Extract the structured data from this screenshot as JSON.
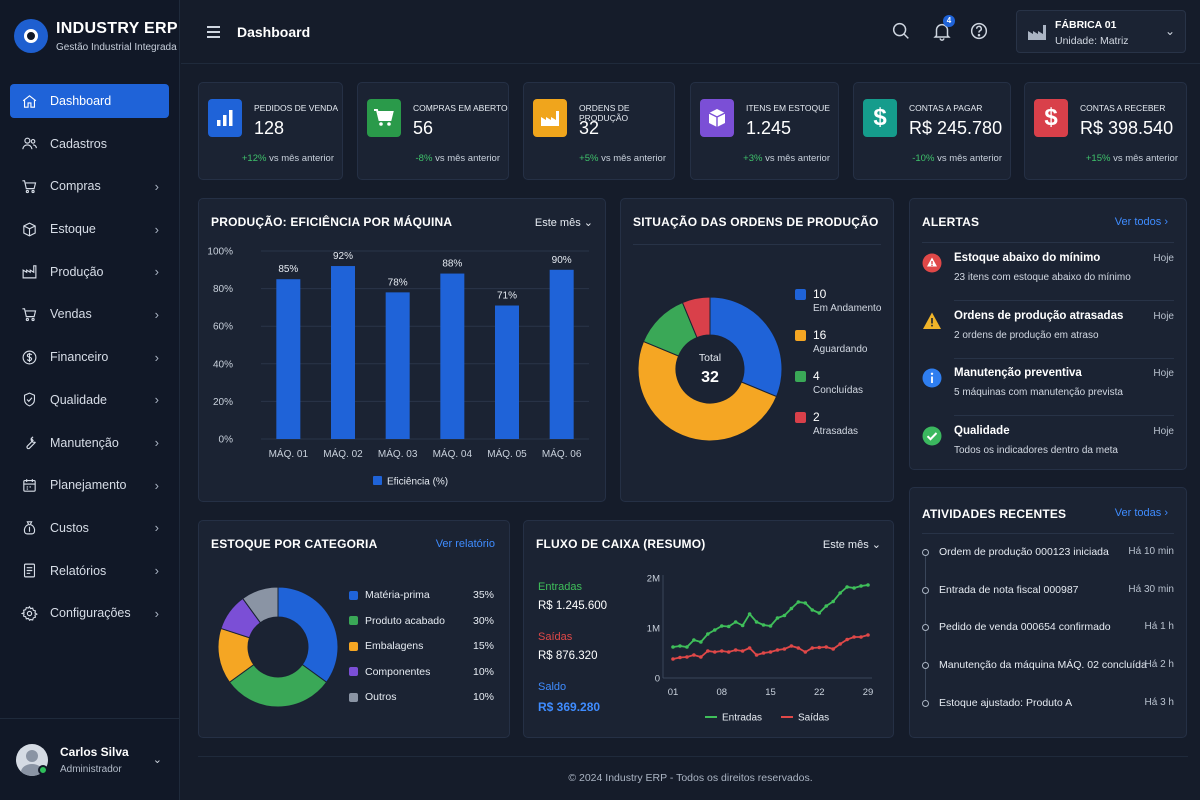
{
  "brand": {
    "title": "INDUSTRY ERP",
    "subtitle": "Gestão Industrial Integrada"
  },
  "nav": [
    {
      "label": "Dashboard",
      "icon": "home-icon"
    },
    {
      "label": "Cadastros",
      "icon": "users-icon"
    },
    {
      "label": "Compras",
      "icon": "cart-icon"
    },
    {
      "label": "Estoque",
      "icon": "box-icon"
    },
    {
      "label": "Produção",
      "icon": "factory-icon"
    },
    {
      "label": "Vendas",
      "icon": "cart-icon"
    },
    {
      "label": "Financeiro",
      "icon": "dollar-icon"
    },
    {
      "label": "Qualidade",
      "icon": "shield-icon"
    },
    {
      "label": "Manutenção",
      "icon": "wrench-icon"
    },
    {
      "label": "Planejamento",
      "icon": "calendar-icon"
    },
    {
      "label": "Custos",
      "icon": "money-bag-icon"
    },
    {
      "label": "Relatórios",
      "icon": "report-icon"
    },
    {
      "label": "Configurações",
      "icon": "gear-icon"
    }
  ],
  "user": {
    "name": "Carlos Silva",
    "role": "Administrador"
  },
  "header": {
    "title": "Dashboard",
    "notifications": "4"
  },
  "factory": {
    "name": "FÁBRICA 01",
    "unit": "Unidade: Matriz"
  },
  "kpis": [
    {
      "label": "PEDIDOS DE VENDA",
      "value": "128",
      "delta": "+12%",
      "suffix": "vs mês anterior",
      "color": "#1f63d8",
      "icon": "bar-chart-icon"
    },
    {
      "label": "COMPRAS EM ABERTO",
      "value": "56",
      "delta": "-8%",
      "suffix": "vs mês anterior",
      "color": "#2a9a4a",
      "icon": "cart-icon"
    },
    {
      "label": "ORDENS DE PRODUÇÃO",
      "value": "32",
      "delta": "+5%",
      "suffix": "vs mês anterior",
      "color": "#f0a51c",
      "icon": "factory-icon"
    },
    {
      "label": "ITENS EM ESTOQUE",
      "value": "1.245",
      "delta": "+3%",
      "suffix": "vs mês anterior",
      "color": "#7b4fd6",
      "icon": "box-icon"
    },
    {
      "label": "CONTAS A PAGAR",
      "value": "R$ 245.780",
      "delta": "-10%",
      "suffix": "vs mês anterior",
      "color": "#159c8c",
      "icon": "dollar-icon"
    },
    {
      "label": "CONTAS A RECEBER",
      "value": "R$ 398.540",
      "delta": "+15%",
      "suffix": "vs mês anterior",
      "color": "#d9404a",
      "icon": "dollar-icon"
    }
  ],
  "production": {
    "title": "PRODUÇÃO: EFICIÊNCIA POR MÁQUINA",
    "period": "Este mês"
  },
  "orders": {
    "title": "SITUAÇÃO DAS ORDENS DE PRODUÇÃO",
    "total_label": "Total",
    "total": "32"
  },
  "alerts_panel": {
    "title": "ALERTAS",
    "link": "Ver todos"
  },
  "alerts": [
    {
      "title": "Estoque abaixo do mínimo",
      "desc": "23 itens com estoque abaixo do mínimo",
      "time": "Hoje",
      "icon": "error-icon",
      "color": "#e04848"
    },
    {
      "title": "Ordens de produção atrasadas",
      "desc": "2 ordens de produção em atraso",
      "time": "Hoje",
      "icon": "warning-icon",
      "color": "#f0b429"
    },
    {
      "title": "Manutenção preventiva",
      "desc": "5 máquinas com manutenção prevista",
      "time": "Hoje",
      "icon": "info-icon",
      "color": "#2f7ef0"
    },
    {
      "title": "Qualidade",
      "desc": "Todos os indicadores dentro da meta",
      "time": "Hoje",
      "icon": "check-icon",
      "color": "#3bb85f"
    }
  ],
  "stock": {
    "title": "ESTOQUE POR CATEGORIA",
    "link": "Ver relatório"
  },
  "cashflow": {
    "title": "FLUXO DE CAIXA (RESUMO)",
    "period": "Este mês",
    "in_label": "Entradas",
    "in_value": "R$ 1.245.600",
    "out_label": "Saídas",
    "out_value": "R$ 876.320",
    "bal_label": "Saldo",
    "bal_value": "R$ 369.280"
  },
  "activities_panel": {
    "title": "ATIVIDADES RECENTES",
    "link": "Ver todas"
  },
  "activities": [
    {
      "text": "Ordem de produção 000123 iniciada",
      "time": "Há 10 min"
    },
    {
      "text": "Entrada de nota fiscal 000987",
      "time": "Há 30 min"
    },
    {
      "text": "Pedido de venda 000654 confirmado",
      "time": "Há 1 h"
    },
    {
      "text": "Manutenção da máquina MÁQ. 02 concluída",
      "time": "Há 2 h"
    },
    {
      "text": "Estoque ajustado: Produto A",
      "time": "Há 3 h"
    }
  ],
  "footer": "© 2024 Industry ERP - Todos os direitos reservados.",
  "chart_data": [
    {
      "type": "bar",
      "categories": [
        "MÁQ. 01",
        "MÁQ. 02",
        "MÁQ. 03",
        "MÁQ. 04",
        "MÁQ. 05",
        "MÁQ. 06"
      ],
      "series": [
        {
          "name": "Eficiência (%)",
          "values": [
            85,
            92,
            78,
            88,
            71,
            90
          ],
          "color": "#1f63d8"
        }
      ],
      "ylim": [
        0,
        100
      ],
      "yticks": [
        "0%",
        "20%",
        "40%",
        "60%",
        "80%",
        "100%"
      ],
      "labels": [
        "85%",
        "92%",
        "78%",
        "88%",
        "71%",
        "90%"
      ],
      "grid": true
    },
    {
      "type": "pie",
      "categories": [
        "Em Andamento",
        "Aguardando",
        "Concluídas",
        "Atrasadas"
      ],
      "values": [
        10,
        16,
        4,
        2
      ],
      "colors": [
        "#1f63d8",
        "#f5a623",
        "#3aa857",
        "#d9404a"
      ]
    },
    {
      "type": "pie",
      "categories": [
        "Matéria-prima",
        "Produto acabado",
        "Embalagens",
        "Componentes",
        "Outros"
      ],
      "values": [
        35,
        30,
        15,
        10,
        10
      ],
      "labels": [
        "35%",
        "30%",
        "15%",
        "10%",
        "10%"
      ],
      "colors": [
        "#1f63d8",
        "#3aa857",
        "#f5a623",
        "#7b4fd6",
        "#8a94a4"
      ]
    },
    {
      "type": "line",
      "x": [
        "01",
        "02",
        "03",
        "04",
        "05",
        "06",
        "07",
        "08",
        "09",
        "10",
        "11",
        "12",
        "13",
        "14",
        "15",
        "16",
        "17",
        "18",
        "19",
        "20",
        "21",
        "22",
        "23",
        "24",
        "25",
        "26",
        "27",
        "28",
        "29"
      ],
      "xticks": [
        "01",
        "08",
        "15",
        "22",
        "29"
      ],
      "yticks": [
        "0",
        "1M",
        "2M"
      ],
      "ylim": [
        0,
        2000000
      ],
      "series": [
        {
          "name": "Entradas",
          "color": "#3fbf5a",
          "values": [
            620000,
            640000,
            620000,
            760000,
            720000,
            880000,
            960000,
            1040000,
            1030000,
            1120000,
            1050000,
            1280000,
            1120000,
            1060000,
            1040000,
            1200000,
            1250000,
            1390000,
            1520000,
            1500000,
            1360000,
            1300000,
            1440000,
            1530000,
            1700000,
            1820000,
            1800000,
            1840000,
            1860000
          ]
        },
        {
          "name": "Saídas",
          "color": "#e04848",
          "values": [
            380000,
            410000,
            420000,
            460000,
            420000,
            540000,
            520000,
            540000,
            520000,
            560000,
            540000,
            600000,
            460000,
            500000,
            520000,
            560000,
            580000,
            640000,
            600000,
            520000,
            600000,
            610000,
            620000,
            580000,
            680000,
            770000,
            820000,
            820000,
            860000
          ]
        }
      ]
    }
  ]
}
